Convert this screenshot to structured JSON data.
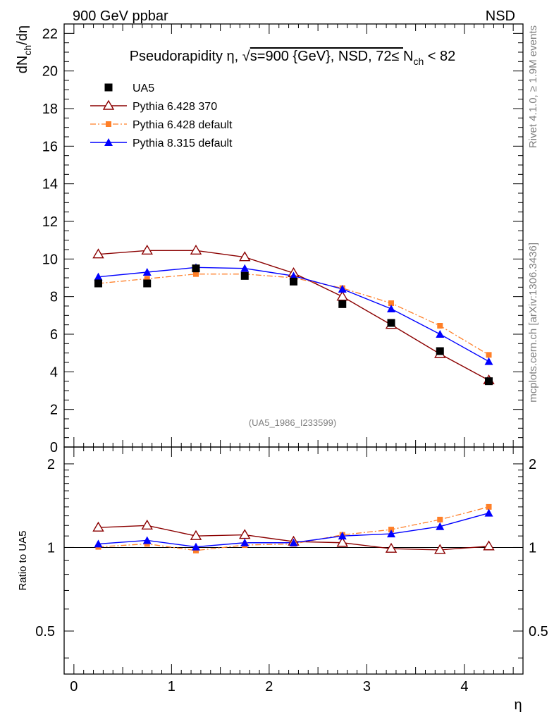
{
  "header": {
    "left_title": "900 GeV ppbar",
    "right_title": "NSD"
  },
  "side_labels": {
    "rivet": "Rivet 4.1.0, ≥ 1.9M events",
    "mcplots": "mcplots.cern.ch [arXiv:1306.3436]"
  },
  "chart_data": {
    "type": "line",
    "title": "Pseudorapidity η, √s=900 {GeV}, NSD, 72≤ N_ch < 82",
    "xlabel": "η",
    "ylabel": "dN_ch/dη",
    "ratio_ylabel": "Ratio to UA5",
    "analysis_label": "(UA5_1986_I233599)",
    "xlim": [
      -0.1,
      4.6
    ],
    "ylim": [
      0,
      22.5
    ],
    "ratio_ylim": [
      0.35,
      2.3
    ],
    "x_ticks": [
      "0",
      "1",
      "2",
      "3",
      "4"
    ],
    "y_ticks": [
      "0",
      "2",
      "4",
      "6",
      "8",
      "10",
      "12",
      "14",
      "16",
      "18",
      "20",
      "22"
    ],
    "ratio_ticks": [
      "0.5",
      "1",
      "2"
    ],
    "x": [
      0.25,
      0.75,
      1.25,
      1.75,
      2.25,
      2.75,
      3.25,
      3.75,
      4.25
    ],
    "series": [
      {
        "name": "UA5",
        "color": "#000000",
        "marker": "square-filled",
        "values": [
          8.7,
          8.7,
          9.5,
          9.1,
          8.8,
          7.6,
          6.6,
          5.1,
          3.5
        ]
      },
      {
        "name": "Pythia 6.428 370",
        "color": "#8b0000",
        "marker": "triangle-open",
        "values": [
          10.25,
          10.45,
          10.45,
          10.1,
          9.25,
          8.0,
          6.5,
          4.95,
          3.55
        ],
        "ratio": [
          1.18,
          1.2,
          1.1,
          1.11,
          1.05,
          1.04,
          0.99,
          0.98,
          1.01
        ]
      },
      {
        "name": "Pythia 6.428 default",
        "color": "#ff7f27",
        "marker": "square-small",
        "values": [
          8.7,
          8.95,
          9.2,
          9.2,
          9.0,
          8.45,
          7.65,
          6.45,
          4.9
        ],
        "ratio": [
          1.005,
          1.03,
          0.975,
          1.02,
          1.03,
          1.11,
          1.16,
          1.26,
          1.4
        ]
      },
      {
        "name": "Pythia 8.315 default",
        "color": "#0000ff",
        "marker": "triangle-filled",
        "values": [
          9.05,
          9.3,
          9.55,
          9.5,
          9.1,
          8.4,
          7.35,
          6.0,
          4.55
        ],
        "ratio": [
          1.03,
          1.06,
          1.005,
          1.04,
          1.04,
          1.1,
          1.12,
          1.19,
          1.33
        ]
      }
    ]
  }
}
